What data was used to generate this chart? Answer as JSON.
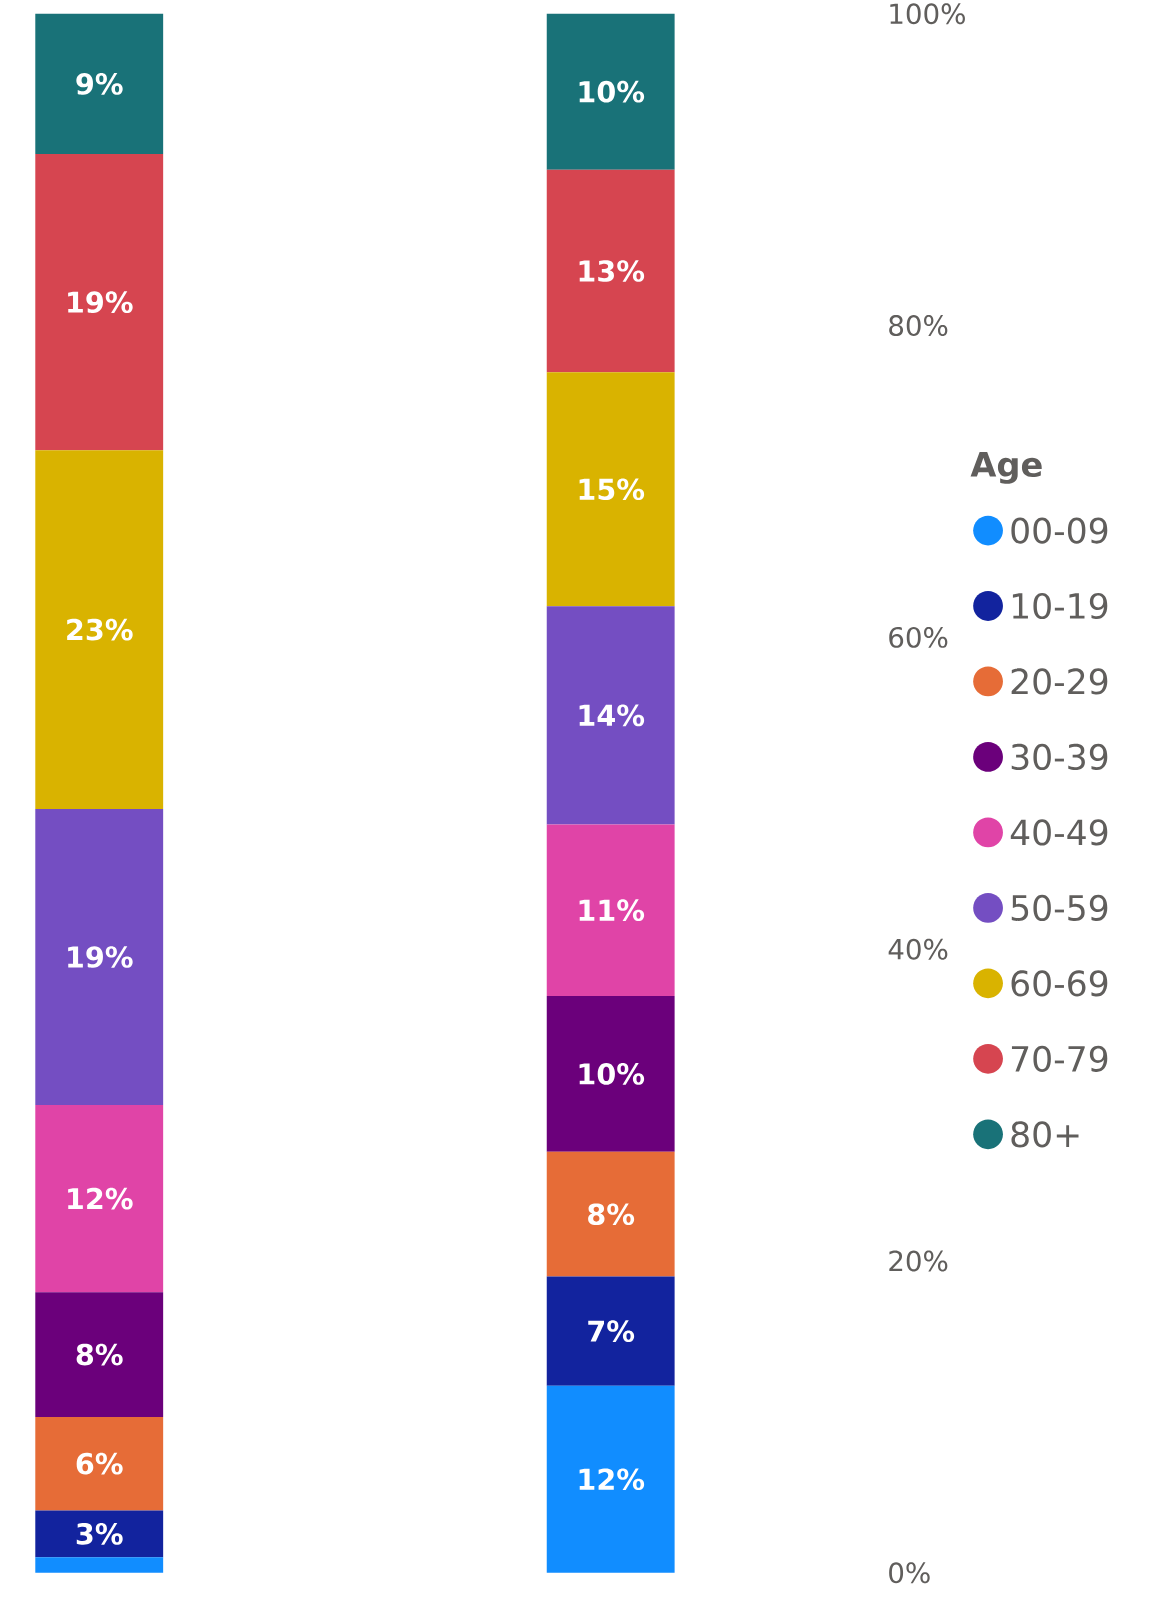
{
  "chart_data": {
    "type": "bar",
    "stacked": true,
    "categories": [
      null,
      null
    ],
    "legend_title": "Age",
    "legend": "right",
    "tick_labels": "y",
    "ylim": [
      0,
      100
    ],
    "yticks": [
      {
        "value": 0,
        "label": "0%"
      },
      {
        "value": 20,
        "label": "20%"
      },
      {
        "value": 40,
        "label": "40%"
      },
      {
        "value": 60,
        "label": "60%"
      },
      {
        "value": 80,
        "label": "80%"
      },
      {
        "value": 100,
        "label": "100%"
      }
    ],
    "series": [
      {
        "name": "00-09",
        "color": "#118dff",
        "values": [
          1,
          12
        ],
        "value_labels": [
          null,
          "12%"
        ]
      },
      {
        "name": "10-19",
        "color": "#12239e",
        "values": [
          3,
          7
        ],
        "value_labels": [
          "3%",
          "7%"
        ]
      },
      {
        "name": "20-29",
        "color": "#e66c37",
        "values": [
          6,
          8
        ],
        "value_labels": [
          "6%",
          "8%"
        ]
      },
      {
        "name": "30-39",
        "color": "#6b007b",
        "values": [
          8,
          10
        ],
        "value_labels": [
          "8%",
          "10%"
        ]
      },
      {
        "name": "40-49",
        "color": "#e044a7",
        "values": [
          12,
          11
        ],
        "value_labels": [
          "12%",
          "11%"
        ]
      },
      {
        "name": "50-59",
        "color": "#744ec2",
        "values": [
          19,
          14
        ],
        "value_labels": [
          "19%",
          "14%"
        ]
      },
      {
        "name": "60-69",
        "color": "#d9b300",
        "values": [
          23,
          15
        ],
        "value_labels": [
          "23%",
          "15%"
        ]
      },
      {
        "name": "70-79",
        "color": "#d64550",
        "values": [
          19,
          13
        ],
        "value_labels": [
          "19%",
          "13%"
        ]
      },
      {
        "name": "80+",
        "color": "#197278",
        "values": [
          9,
          10
        ],
        "value_labels": [
          "9%",
          "10%"
        ]
      }
    ]
  }
}
